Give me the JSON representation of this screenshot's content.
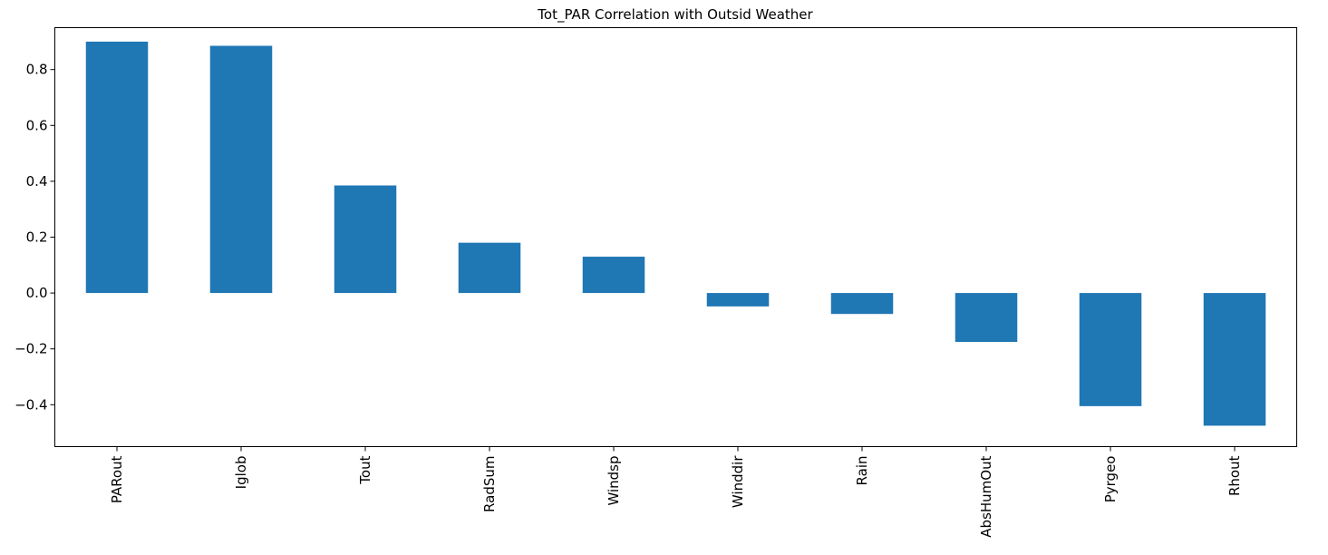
{
  "chart_data": {
    "type": "bar",
    "title": "Tot_PAR Correlation with Outsid Weather",
    "xlabel": "",
    "ylabel": "",
    "categories": [
      "PARout",
      "Iglob",
      "Tout",
      "RadSum",
      "Windsp",
      "Winddir",
      "Rain",
      "AbsHumOut",
      "Pyrgeo",
      "Rhout"
    ],
    "values": [
      0.9,
      0.885,
      0.385,
      0.18,
      0.13,
      -0.048,
      -0.075,
      -0.175,
      -0.405,
      -0.475
    ],
    "ylim": [
      -0.55,
      0.95
    ],
    "yticks": [
      -0.4,
      -0.2,
      0.0,
      0.2,
      0.4,
      0.6,
      0.8
    ],
    "ytick_labels": [
      "−0.4",
      "−0.2",
      "0.0",
      "0.2",
      "0.4",
      "0.6",
      "0.8"
    ],
    "bar_color": "#1f77b4",
    "grid": false,
    "legend": false
  }
}
